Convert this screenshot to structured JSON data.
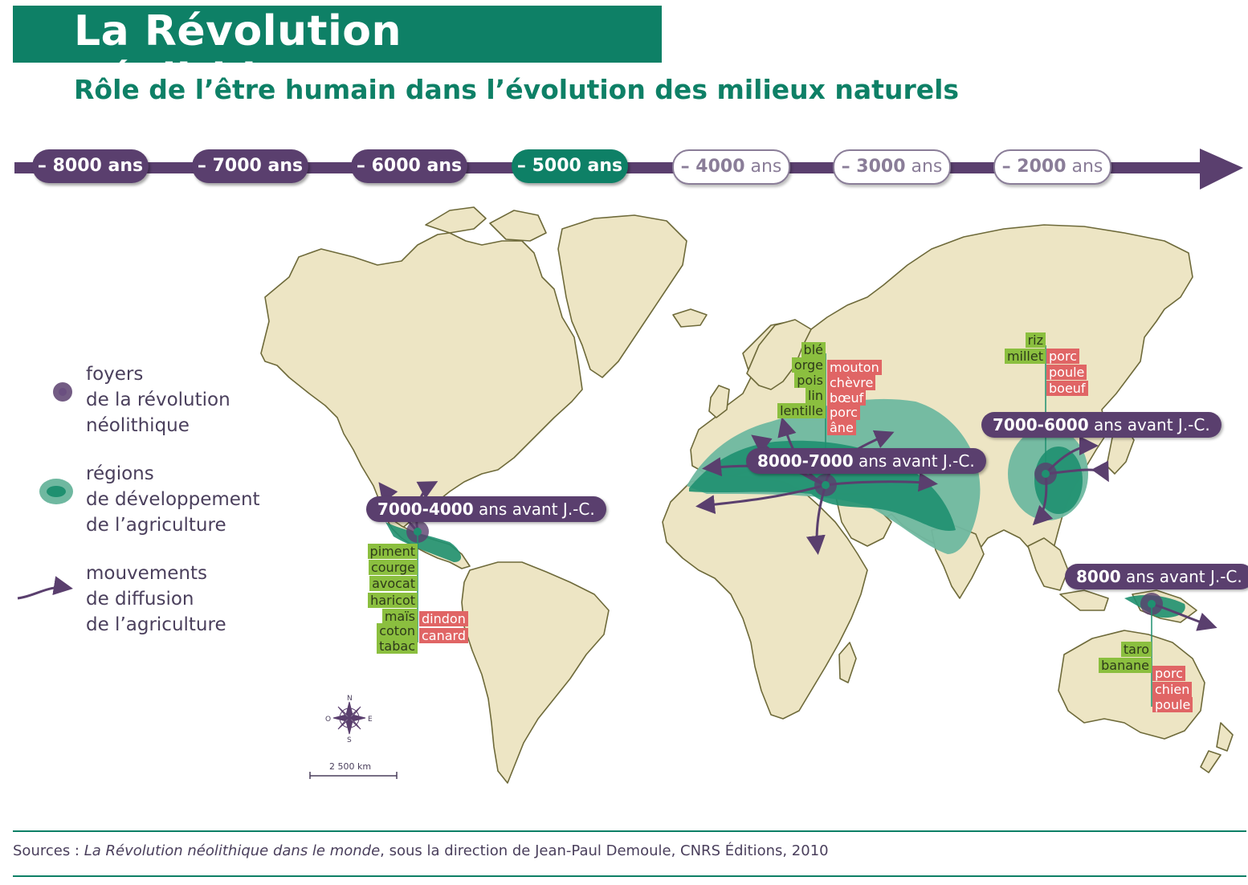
{
  "title": "La Révolution néolithique",
  "subtitle": "Rôle de l’être humain dans l’évolution des milieux naturels",
  "timeline": [
    {
      "label": "– 8000 ans",
      "style": "dark"
    },
    {
      "label": "– 7000 ans",
      "style": "dark"
    },
    {
      "label": "– 6000 ans",
      "style": "dark"
    },
    {
      "label": "– 5000 ans",
      "style": "green"
    },
    {
      "label_bold": "– 4000",
      "label_rest": " ans",
      "style": "light"
    },
    {
      "label_bold": "– 3000",
      "label_rest": " ans",
      "style": "light"
    },
    {
      "label_bold": "– 2000",
      "label_rest": " ans",
      "style": "light"
    }
  ],
  "legend": {
    "foyers": [
      "foyers",
      "de la révolution",
      "néolithique"
    ],
    "regions": [
      "régions",
      "de développement",
      "de l’agriculture"
    ],
    "mouvements": [
      "mouvements",
      "de diffusion",
      "de l’agriculture"
    ]
  },
  "centers": {
    "mesoamerica": {
      "date": "7000-4000",
      "rest": " ans avant J.-C.",
      "plants": [
        "piment",
        "courge",
        "avocat",
        "haricot",
        "maïs",
        "coton",
        "tabac"
      ],
      "animals": [
        "dindon",
        "canard"
      ]
    },
    "fertile_crescent": {
      "date": "8000-7000",
      "rest": " ans avant J.-C.",
      "plants": [
        "blé",
        "orge",
        "pois",
        "lin",
        "lentille"
      ],
      "animals": [
        "mouton",
        "chèvre",
        "bœuf",
        "porc",
        "âne"
      ]
    },
    "china": {
      "date": "7000-6000",
      "rest": " ans avant J.-C.",
      "plants": [
        "riz",
        "millet"
      ],
      "animals": [
        "porc",
        "poule",
        "boeuf"
      ]
    },
    "new_guinea": {
      "date": "8000",
      "rest": " ans avant J.-C.",
      "plants": [
        "taro",
        "banane"
      ],
      "animals": [
        "porc",
        "chien",
        "poule"
      ]
    }
  },
  "compass": {
    "n": "N",
    "s": "S",
    "e": "E",
    "o": "O"
  },
  "scale": "2 500 km",
  "sources": {
    "prefix": "Sources : ",
    "book": "La Révolution néolithique dans le monde",
    "suffix": ", sous la direction de Jean-Paul Demoule, CNRS Éditions, 2010"
  },
  "colors": {
    "title_bg": "#0e8066",
    "timeline": "#5a3f6e",
    "land": "#ede5c4",
    "coast": "#6e6a3a",
    "region_light": "#6fb8a0",
    "region_dark": "#1f9070",
    "plant_tag": "#8bbf3f",
    "animal_tag": "#e06565"
  }
}
